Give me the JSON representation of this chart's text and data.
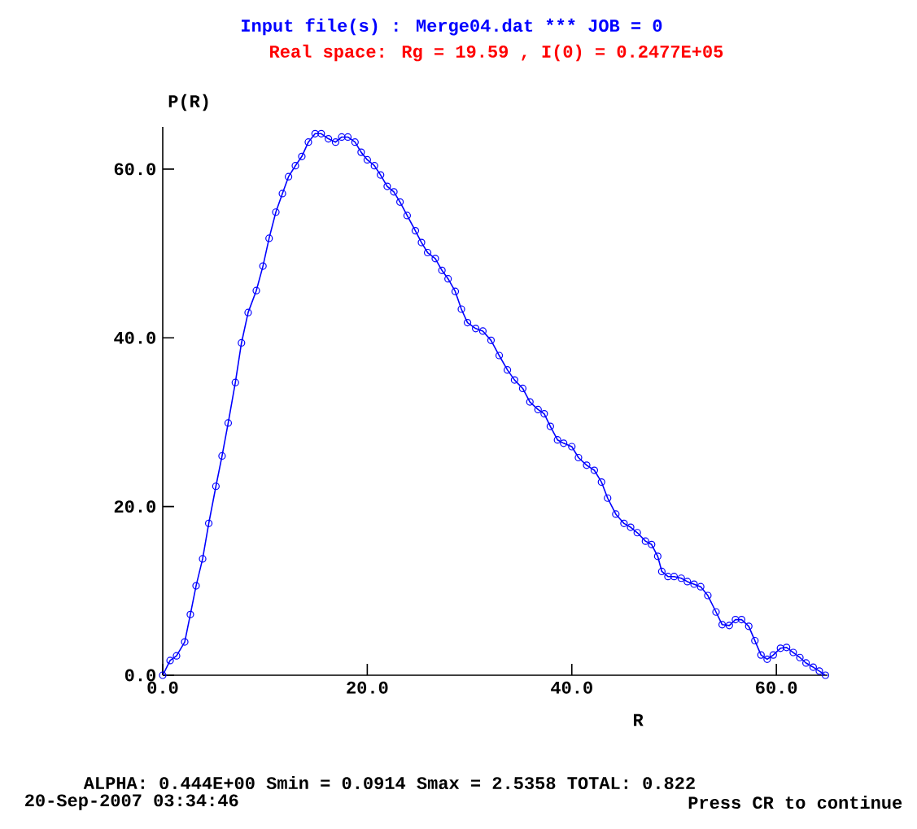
{
  "chart_data": {
    "type": "line",
    "title": "Input file(s) : Merge04.dat *** JOB = 0",
    "subtitle": "Real space: Rg = 19.59 , I(0) = 0.2477E+05",
    "xlabel": "R",
    "ylabel": "P(R)",
    "annotations": [
      "ALPHA: 0.444E+00 Smin = 0.0914 Smax = 2.5358 TOTAL: 0.822",
      "20-Sep-2007 03:34:46",
      "Press CR to continue"
    ],
    "x": [
      0,
      0.72,
      1.35,
      2.15,
      2.7,
      3.26,
      3.9,
      4.5,
      5.2,
      5.8,
      6.4,
      7.1,
      7.7,
      8.35,
      9.15,
      9.8,
      10.4,
      11.06,
      11.7,
      12.3,
      12.97,
      13.6,
      14.24,
      14.9,
      15.5,
      16.2,
      16.9,
      17.5,
      18.1,
      18.8,
      19.4,
      20.0,
      20.7,
      21.3,
      21.95,
      22.6,
      23.2,
      23.9,
      24.7,
      25.3,
      25.9,
      26.65,
      27.3,
      27.9,
      28.6,
      29.2,
      29.8,
      30.6,
      31.3,
      32.1,
      32.9,
      33.7,
      34.4,
      35.2,
      35.9,
      36.7,
      37.3,
      37.9,
      38.6,
      39.2,
      40.0,
      40.65,
      41.45,
      42.2,
      42.9,
      43.5,
      44.3,
      45.1,
      45.75,
      46.4,
      47.2,
      47.8,
      48.4,
      48.8,
      49.4,
      50.0,
      50.7,
      51.3,
      51.95,
      52.6,
      53.3,
      54.1,
      54.7,
      55.4,
      56.0,
      56.6,
      57.3,
      57.9,
      58.5,
      59.1,
      59.7,
      60.4,
      61.0,
      61.65,
      62.3,
      62.9,
      63.6,
      64.2,
      64.8
    ],
    "series": [
      {
        "color": "#0000ff",
        "values": [
          0,
          1.74,
          2.3,
          3.95,
          7.2,
          10.6,
          13.8,
          18.0,
          22.4,
          26.0,
          29.9,
          34.7,
          39.4,
          43.0,
          45.6,
          48.5,
          51.8,
          54.9,
          57.1,
          59.1,
          60.4,
          61.5,
          63.2,
          64.2,
          64.2,
          63.6,
          63.2,
          63.8,
          63.8,
          63.2,
          62.0,
          61.1,
          60.4,
          59.3,
          57.95,
          57.3,
          56.1,
          54.5,
          52.7,
          51.3,
          50.1,
          49.4,
          48.0,
          47.0,
          45.5,
          43.4,
          41.8,
          41.1,
          40.8,
          39.7,
          37.9,
          36.2,
          35.0,
          34.0,
          32.4,
          31.5,
          31.0,
          29.5,
          27.9,
          27.5,
          27.1,
          25.8,
          24.9,
          24.3,
          22.9,
          21.0,
          19.1,
          18.0,
          17.55,
          16.9,
          15.9,
          15.5,
          14.1,
          12.3,
          11.7,
          11.7,
          11.5,
          11.1,
          10.8,
          10.5,
          9.45,
          7.5,
          6.0,
          5.9,
          6.6,
          6.6,
          5.8,
          4.1,
          2.4,
          1.9,
          2.4,
          3.2,
          3.3,
          2.7,
          2.1,
          1.45,
          0.96,
          0.5,
          0.0
        ]
      }
    ],
    "xlim": [
      0,
      65
    ],
    "ylim": [
      0,
      65
    ],
    "xticks": [
      {
        "value": 0,
        "label": "0.0"
      },
      {
        "value": 20,
        "label": "20.0"
      },
      {
        "value": 40,
        "label": "40.0"
      },
      {
        "value": 60,
        "label": "60.0"
      }
    ],
    "yticks": [
      {
        "value": 0,
        "label": "0.0"
      },
      {
        "value": 20,
        "label": "20.0"
      },
      {
        "value": 40,
        "label": "40.0"
      },
      {
        "value": 60,
        "label": "60.0"
      }
    ],
    "grid": false,
    "marker": "circle",
    "line_style": "solid"
  }
}
